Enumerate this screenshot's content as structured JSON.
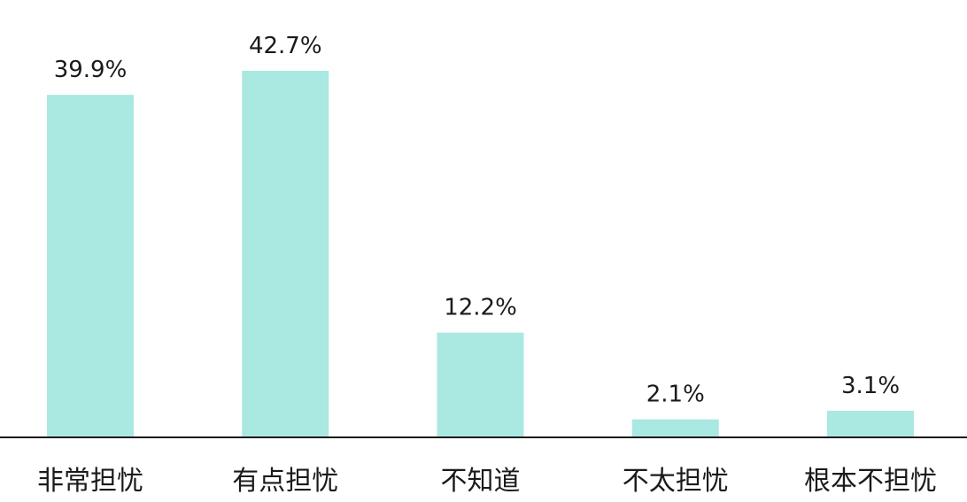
{
  "chart_data": {
    "type": "bar",
    "categories": [
      "非常担忧",
      "有点担忧",
      "不知道",
      "不太担忧",
      "根本不担忧"
    ],
    "values": [
      39.9,
      42.7,
      12.2,
      2.1,
      3.1
    ],
    "value_labels": [
      "39.9%",
      "42.7%",
      "12.2%",
      "2.1%",
      "3.1%"
    ],
    "title": "",
    "xlabel": "",
    "ylabel": "",
    "ylim": [
      0,
      42.7
    ],
    "grid": false,
    "legend": "none",
    "colors": {
      "bar": "#aae8e2",
      "axis": "#1a1a1a",
      "text": "#1a1a1a"
    }
  }
}
